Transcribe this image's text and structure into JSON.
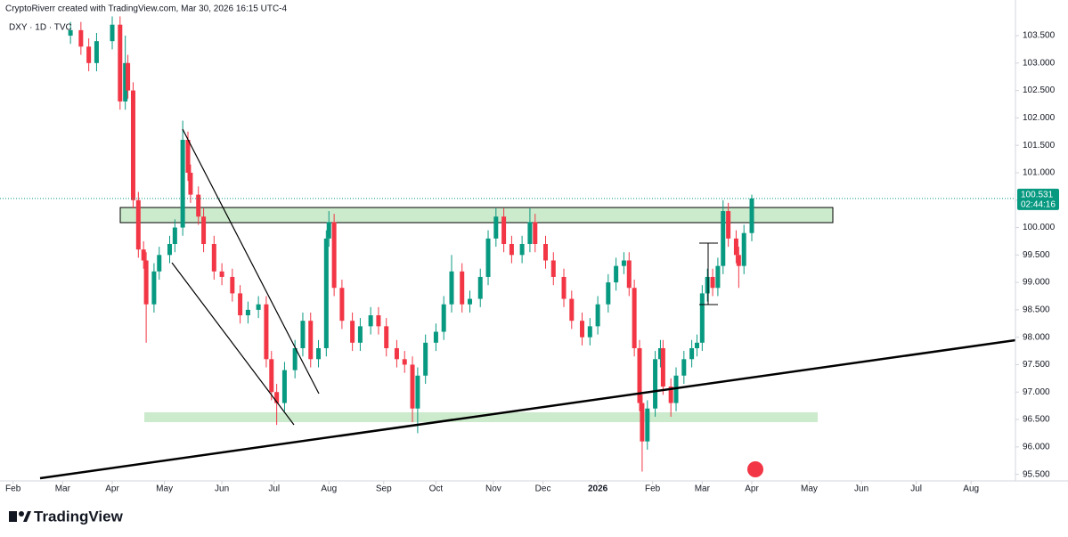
{
  "chart_data": {
    "type": "candlestick",
    "attribution": "CryptoRiverr created with TradingView.com, Mar 30, 2026 16:15 UTC-4",
    "symbol": "DXY · 1D · TVC",
    "brand": "TradingView",
    "countdown": "02:44:16",
    "up_color": "#089981",
    "down_color": "#f23645",
    "x": [
      22,
      26,
      29,
      32,
      38,
      41,
      43,
      44,
      46,
      48,
      50,
      51,
      54,
      56,
      60,
      62,
      65,
      67,
      68,
      71,
      73,
      77,
      80,
      84,
      87,
      90,
      94,
      97,
      99,
      101,
      104,
      108,
      111,
      114,
      117,
      120,
      121,
      123,
      126,
      130,
      133,
      137,
      140,
      143,
      147,
      150,
      153,
      155,
      158,
      162,
      165,
      168,
      172,
      175,
      179,
      182,
      185,
      188,
      191,
      195,
      198,
      200,
      204,
      207,
      211,
      214,
      218,
      221,
      224,
      228,
      231,
      234,
      236,
      238,
      240,
      241,
      243,
      246,
      248,
      249,
      252,
      254,
      257,
      260,
      262,
      264,
      266,
      268,
      270,
      272,
      274,
      277,
      278,
      280,
      283
    ],
    "open": [
      103.5,
      103.6,
      103.3,
      103.0,
      103.4,
      103.7,
      102.3,
      103.0,
      102.5,
      100.5,
      99.6,
      99.4,
      98.6,
      99.2,
      99.5,
      99.7,
      100.0,
      101.6,
      101.0,
      100.6,
      100.2,
      99.7,
      99.2,
      99.1,
      98.8,
      98.4,
      98.5,
      98.6,
      97.6,
      97.0,
      96.8,
      97.4,
      97.8,
      98.3,
      97.6,
      97.8,
      99.8,
      100.1,
      98.9,
      98.3,
      97.9,
      98.2,
      98.4,
      98.2,
      97.8,
      97.6,
      97.5,
      96.7,
      97.3,
      97.9,
      98.1,
      98.6,
      99.2,
      98.6,
      98.7,
      99.1,
      99.8,
      100.2,
      99.7,
      99.5,
      99.7,
      100.1,
      99.7,
      99.4,
      99.1,
      98.7,
      98.3,
      98.0,
      98.2,
      98.6,
      99.0,
      99.3,
      99.4,
      98.9,
      97.8,
      96.8,
      96.1,
      96.7,
      97.6,
      97.8,
      97.1,
      96.8,
      97.3,
      97.6,
      97.8,
      97.9,
      98.8,
      99.1,
      98.9,
      99.3,
      100.3,
      99.8,
      99.5,
      99.3,
      99.9
    ],
    "high": [
      103.75,
      103.75,
      103.45,
      103.55,
      103.85,
      103.85,
      103.5,
      103.15,
      102.65,
      100.65,
      99.75,
      99.55,
      99.35,
      99.65,
      99.85,
      100.15,
      101.95,
      101.75,
      101.15,
      100.75,
      100.35,
      99.85,
      99.35,
      99.25,
      98.95,
      98.65,
      98.75,
      98.75,
      97.75,
      97.15,
      97.55,
      97.95,
      98.45,
      98.45,
      97.95,
      99.95,
      100.3,
      100.25,
      99.05,
      98.45,
      98.35,
      98.55,
      98.55,
      98.35,
      97.95,
      97.75,
      97.65,
      97.45,
      98.05,
      98.25,
      98.75,
      99.5,
      99.35,
      98.85,
      99.25,
      99.95,
      100.35,
      100.35,
      99.85,
      99.85,
      100.35,
      100.25,
      99.85,
      99.55,
      99.25,
      98.85,
      98.45,
      98.35,
      98.75,
      99.15,
      99.45,
      99.55,
      99.55,
      99.05,
      97.95,
      96.95,
      96.85,
      97.75,
      97.95,
      97.95,
      97.25,
      97.45,
      97.75,
      97.95,
      98.05,
      98.95,
      99.25,
      99.25,
      99.45,
      100.5,
      100.45,
      99.95,
      99.65,
      100.05,
      100.6
    ],
    "low": [
      103.35,
      103.15,
      102.85,
      102.85,
      103.25,
      102.15,
      102.15,
      102.35,
      100.35,
      99.45,
      99.25,
      97.9,
      98.45,
      99.05,
      99.35,
      99.55,
      99.85,
      100.85,
      100.45,
      100.05,
      99.55,
      99.05,
      98.95,
      98.65,
      98.25,
      98.25,
      98.35,
      97.45,
      96.85,
      96.4,
      96.65,
      97.25,
      97.65,
      97.45,
      97.45,
      97.65,
      99.65,
      98.75,
      98.15,
      97.75,
      97.75,
      98.05,
      98.05,
      97.65,
      97.45,
      97.35,
      96.45,
      96.25,
      97.15,
      97.75,
      97.95,
      98.45,
      98.45,
      98.45,
      98.55,
      98.95,
      99.65,
      99.55,
      99.35,
      99.35,
      99.55,
      99.55,
      99.25,
      98.95,
      98.55,
      98.15,
      97.85,
      97.85,
      98.05,
      98.45,
      98.85,
      99.15,
      98.75,
      97.65,
      96.65,
      95.55,
      95.95,
      96.55,
      97.45,
      96.95,
      96.55,
      96.65,
      97.15,
      97.45,
      97.65,
      97.75,
      98.65,
      98.75,
      98.75,
      99.15,
      99.65,
      99.35,
      98.9,
      99.15,
      99.75
    ],
    "close": [
      103.6,
      103.3,
      103.0,
      103.4,
      103.7,
      102.3,
      103.0,
      102.5,
      100.5,
      99.6,
      99.4,
      98.6,
      99.2,
      99.5,
      99.7,
      100.0,
      101.6,
      101.0,
      100.6,
      100.2,
      99.7,
      99.2,
      99.1,
      98.8,
      98.4,
      98.5,
      98.6,
      97.6,
      97.0,
      96.8,
      97.4,
      97.8,
      98.3,
      97.6,
      97.8,
      99.8,
      100.1,
      98.9,
      98.3,
      97.9,
      98.2,
      98.4,
      98.2,
      97.8,
      97.6,
      97.5,
      96.7,
      97.3,
      97.9,
      98.1,
      98.6,
      99.2,
      98.6,
      98.7,
      99.1,
      99.8,
      100.2,
      99.7,
      99.5,
      99.7,
      100.1,
      99.7,
      99.4,
      99.1,
      98.7,
      98.3,
      98.0,
      98.2,
      98.6,
      99.0,
      99.3,
      99.4,
      98.9,
      97.8,
      96.8,
      96.1,
      96.7,
      97.6,
      97.8,
      97.1,
      96.8,
      97.3,
      97.6,
      97.8,
      97.9,
      98.8,
      99.1,
      98.9,
      99.3,
      100.3,
      99.8,
      99.5,
      99.3,
      99.9,
      100.531
    ],
    "xlim": [
      -5,
      384
    ],
    "xticks": [
      {
        "value": 0,
        "label": "Feb"
      },
      {
        "value": 19,
        "label": "Mar"
      },
      {
        "value": 38,
        "label": "Apr"
      },
      {
        "value": 58,
        "label": "May"
      },
      {
        "value": 80,
        "label": "Jun"
      },
      {
        "value": 100,
        "label": "Jul"
      },
      {
        "value": 121,
        "label": "Aug"
      },
      {
        "value": 142,
        "label": "Sep"
      },
      {
        "value": 162,
        "label": "Oct"
      },
      {
        "value": 184,
        "label": "Nov"
      },
      {
        "value": 203,
        "label": "Dec"
      },
      {
        "value": 224,
        "label": "2026"
      },
      {
        "value": 245,
        "label": "Feb"
      },
      {
        "value": 264,
        "label": "Mar"
      },
      {
        "value": 283,
        "label": "Apr"
      },
      {
        "value": 305,
        "label": "May"
      },
      {
        "value": 325,
        "label": "Jun"
      },
      {
        "value": 346,
        "label": "Jul"
      },
      {
        "value": 367,
        "label": "Aug"
      }
    ],
    "ylim": [
      95.38,
      104.15
    ],
    "yticks": [
      {
        "value": 95.5,
        "label": "95.500"
      },
      {
        "value": 96,
        "label": "96.000"
      },
      {
        "value": 96.5,
        "label": "96.500"
      },
      {
        "value": 97,
        "label": "97.000"
      },
      {
        "value": 97.5,
        "label": "97.500"
      },
      {
        "value": 98,
        "label": "98.000"
      },
      {
        "value": 98.5,
        "label": "98.500"
      },
      {
        "value": 99,
        "label": "99.000"
      },
      {
        "value": 99.5,
        "label": "99.500"
      },
      {
        "value": 100,
        "label": "100.000"
      },
      {
        "value": 100.5,
        "label": "100.500"
      },
      {
        "value": 101,
        "label": "101.000"
      },
      {
        "value": 101.5,
        "label": "101.500"
      },
      {
        "value": 102,
        "label": "102.000"
      },
      {
        "value": 102.5,
        "label": "102.500"
      },
      {
        "value": 103,
        "label": "103.000"
      },
      {
        "value": 103.5,
        "label": "103.500"
      }
    ]
  }
}
